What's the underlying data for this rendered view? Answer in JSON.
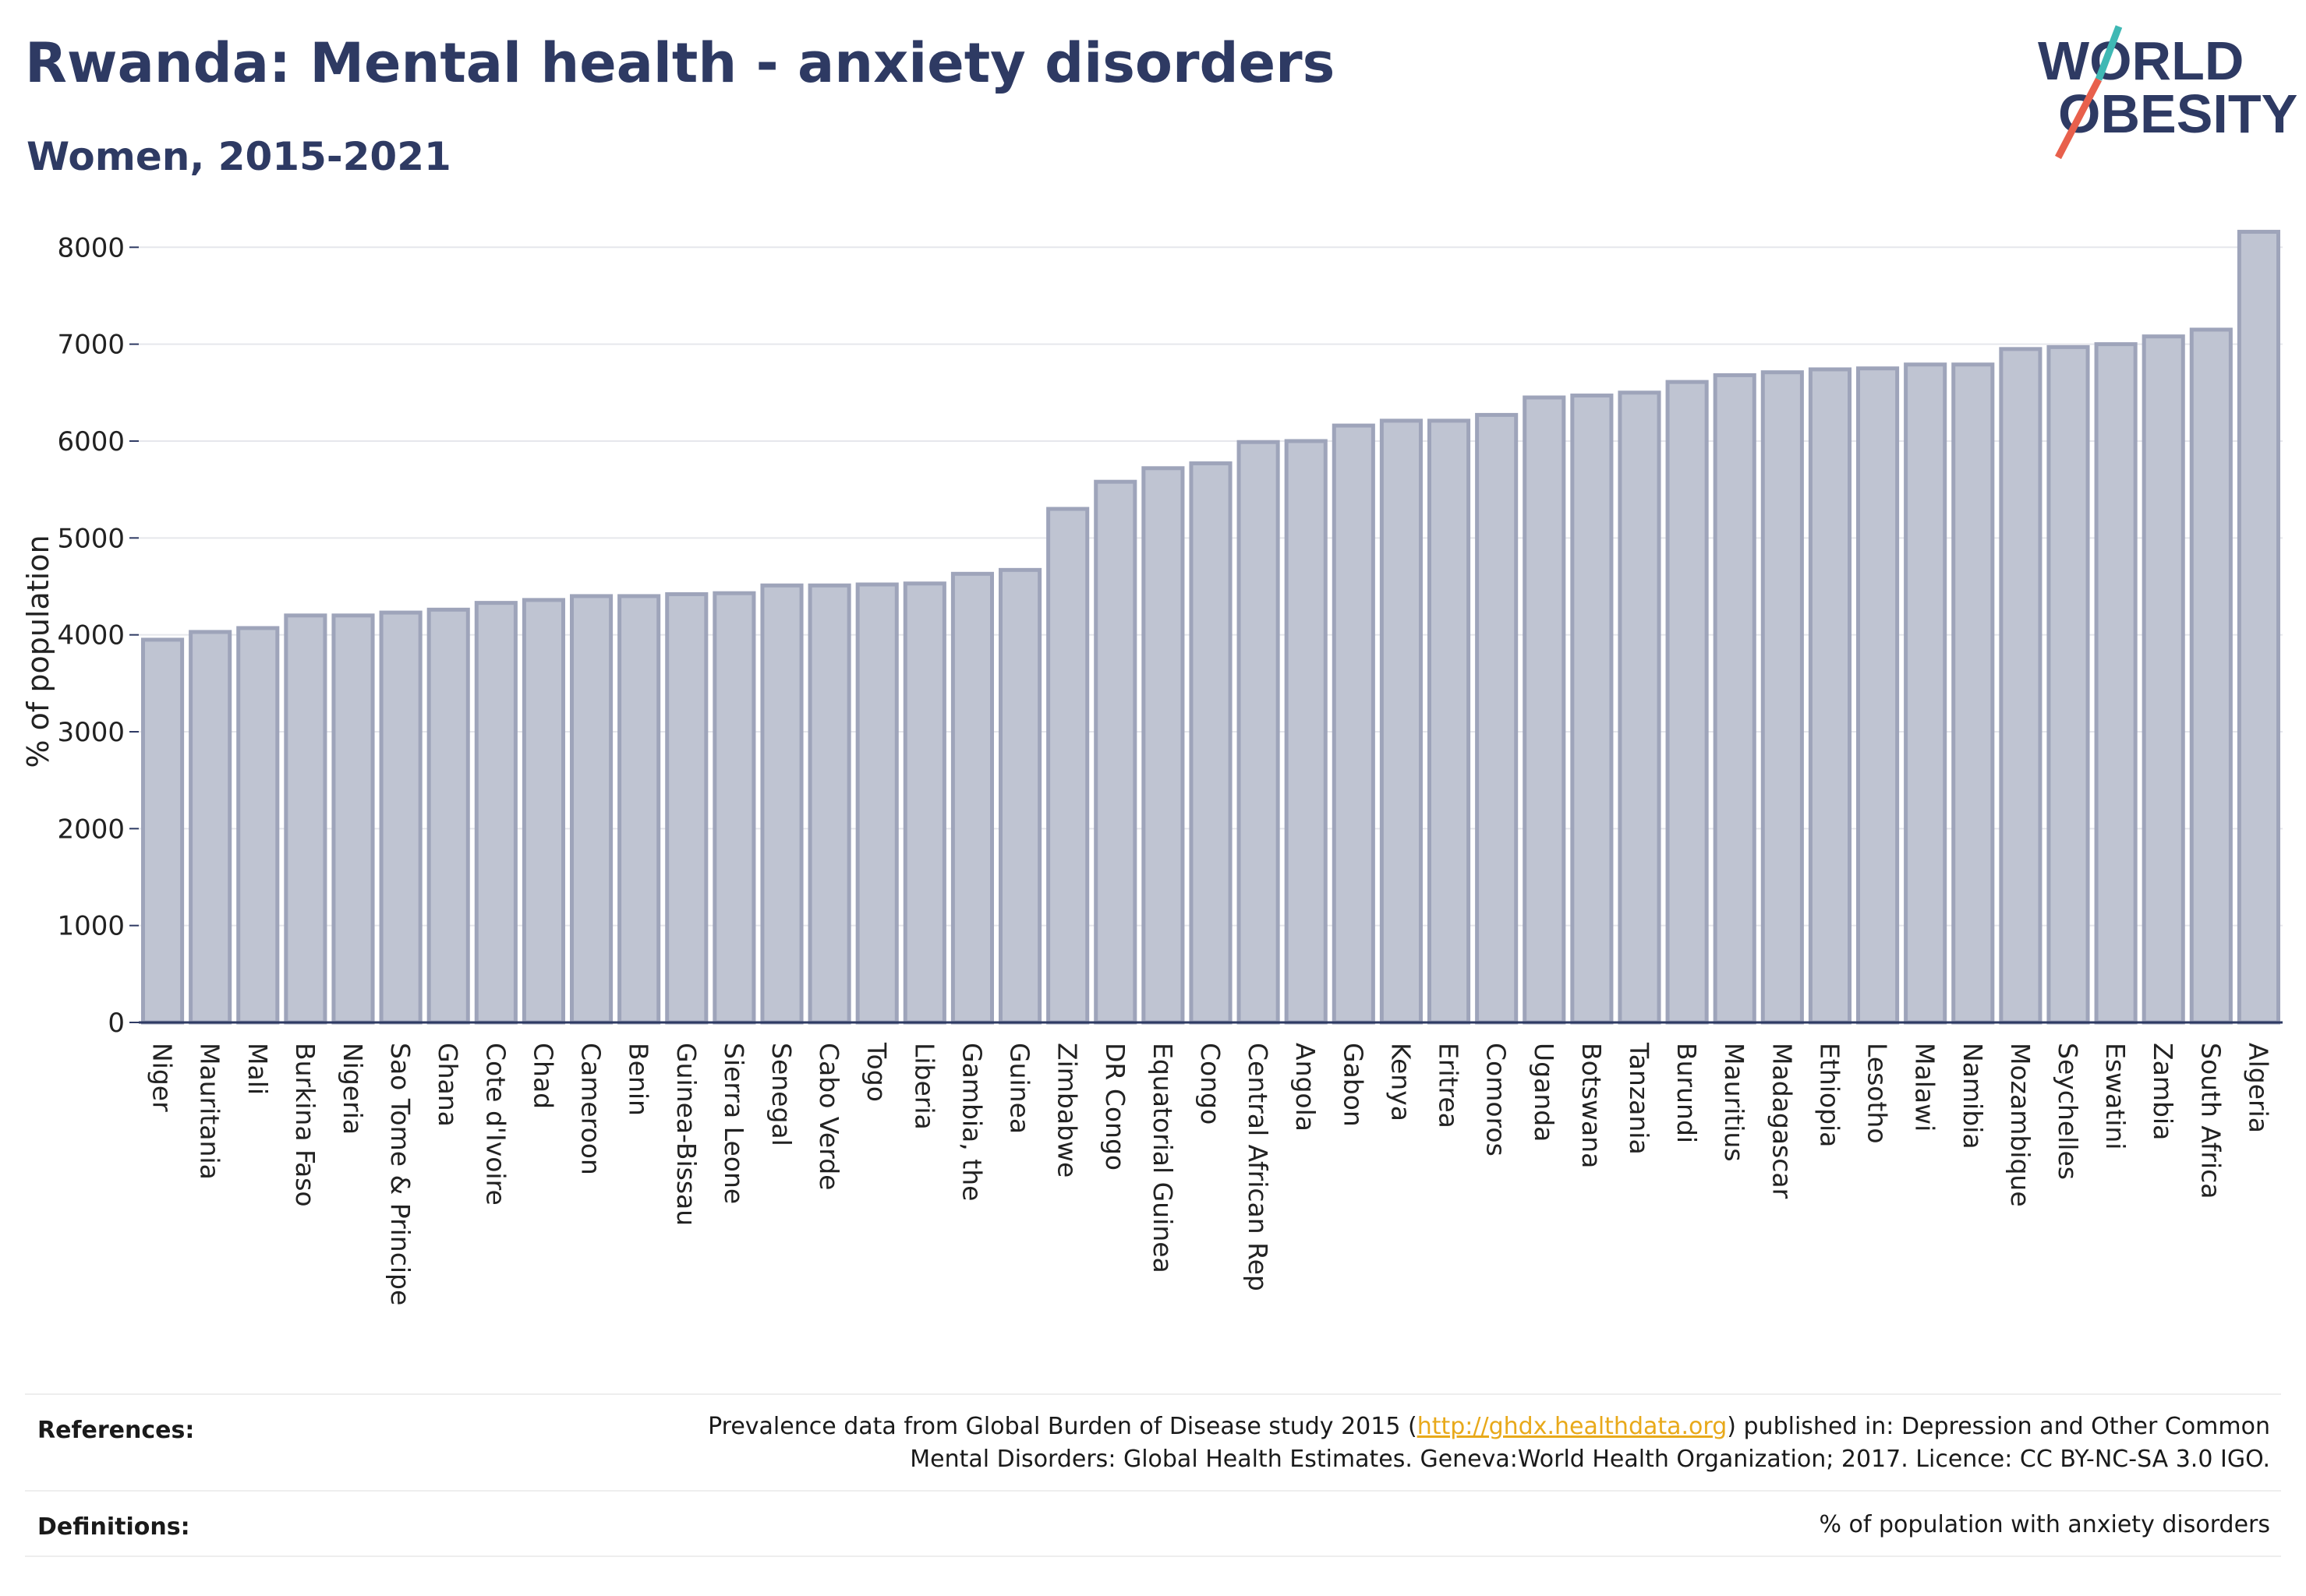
{
  "header": {
    "title": "Rwanda: Mental health - anxiety disorders",
    "subtitle": "Women, 2015-2021"
  },
  "logo": {
    "line1": "WORLD",
    "line2": "OBESITY",
    "colors": {
      "text": "#2e3a63",
      "slash_top": "#3fb8b4",
      "slash_bottom": "#e8604c"
    }
  },
  "chart_data": {
    "type": "bar",
    "title": "",
    "xlabel": "",
    "ylabel": "% of population",
    "ylim": [
      0,
      8300
    ],
    "yticks": [
      0,
      1000,
      2000,
      3000,
      4000,
      5000,
      6000,
      7000,
      8000
    ],
    "grid": true,
    "bar_color": "#bfc4d2",
    "bar_edge_color": "#9ea4ba",
    "categories": [
      "Niger",
      "Mauritania",
      "Mali",
      "Burkina Faso",
      "Nigeria",
      "Sao Tome & Principe",
      "Ghana",
      "Cote d'Ivoire",
      "Chad",
      "Cameroon",
      "Benin",
      "Guinea-Bissau",
      "Sierra Leone",
      "Senegal",
      "Cabo Verde",
      "Togo",
      "Liberia",
      "Gambia, the",
      "Guinea",
      "Zimbabwe",
      "DR Congo",
      "Equatorial Guinea",
      "Congo",
      "Central African Rep",
      "Angola",
      "Gabon",
      "Kenya",
      "Eritrea",
      "Comoros",
      "Uganda",
      "Botswana",
      "Tanzania",
      "Burundi",
      "Mauritius",
      "Madagascar",
      "Ethiopia",
      "Lesotho",
      "Malawi",
      "Namibia",
      "Mozambique",
      "Seychelles",
      "Eswatini",
      "Zambia",
      "South Africa",
      "Algeria"
    ],
    "values": [
      3950,
      4030,
      4070,
      4200,
      4200,
      4230,
      4260,
      4330,
      4360,
      4400,
      4400,
      4420,
      4430,
      4510,
      4510,
      4520,
      4530,
      4630,
      4670,
      5300,
      5580,
      5720,
      5770,
      5990,
      6000,
      6160,
      6210,
      6210,
      6270,
      6450,
      6470,
      6500,
      6610,
      6680,
      6710,
      6740,
      6750,
      6790,
      6790,
      6950,
      6970,
      7000,
      7080,
      7150,
      8160
    ]
  },
  "footer": {
    "references_label": "References:",
    "references_text_before": "Prevalence data from Global Burden of Disease study 2015 (",
    "references_link": "http://ghdx.healthdata.org",
    "references_text_after": ") published in: Depression and Other Common",
    "references_line2": "Mental Disorders: Global Health Estimates. Geneva:World Health Organization; 2017. Licence: CC BY-NC-SA 3.0 IGO.",
    "definitions_label": "Definitions:",
    "definitions_text": "% of population with anxiety disorders"
  }
}
